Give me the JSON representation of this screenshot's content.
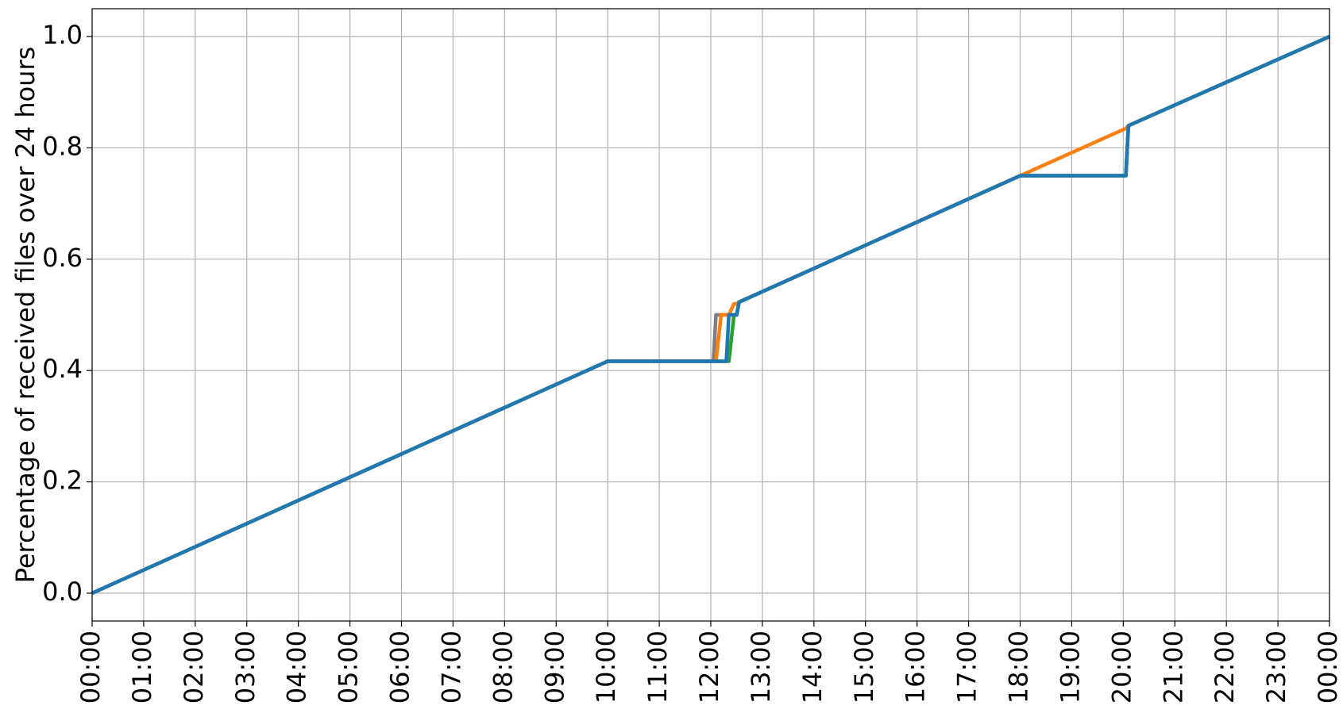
{
  "chart_data": {
    "type": "line",
    "ylabel": "Percentage of received files over 24 hours",
    "x": [
      0,
      10,
      12.05,
      12.1,
      12.2,
      12.25,
      12.3,
      12.35,
      12.45,
      12.5,
      12.55,
      18,
      20.05,
      20.1,
      24
    ],
    "series": [
      {
        "color": "#7f7f7f",
        "values": [
          0,
          0.4167,
          0.4167,
          0.5,
          0.5,
          0.5,
          0.5,
          0.5,
          0.5,
          0.5,
          0.523,
          0.75,
          0.75,
          0.84,
          1.0
        ]
      },
      {
        "color": "#ff7f0e",
        "values": [
          0,
          0.4167,
          0.4167,
          0.4167,
          0.5,
          0.5,
          0.5,
          0.5,
          0.52,
          0.52,
          0.523,
          0.75,
          0.835,
          0.84,
          1.0
        ]
      },
      {
        "color": "#2ca02c",
        "values": [
          0,
          0.4167,
          0.4167,
          0.4167,
          0.4167,
          0.4167,
          0.4167,
          0.4167,
          0.5,
          0.5,
          0.523,
          0.75,
          0.75,
          0.84,
          1.0
        ]
      },
      {
        "color": "#1f77b4",
        "values": [
          0,
          0.4167,
          0.4167,
          0.4167,
          0.4167,
          0.4167,
          0.4167,
          0.5,
          0.5,
          0.5,
          0.523,
          0.75,
          0.75,
          0.84,
          1.0
        ]
      }
    ],
    "xlim": [
      0,
      24
    ],
    "xticks": [
      {
        "value": 0,
        "label": "00:00"
      },
      {
        "value": 1,
        "label": "01:00"
      },
      {
        "value": 2,
        "label": "02:00"
      },
      {
        "value": 3,
        "label": "03:00"
      },
      {
        "value": 4,
        "label": "04:00"
      },
      {
        "value": 5,
        "label": "05:00"
      },
      {
        "value": 6,
        "label": "06:00"
      },
      {
        "value": 7,
        "label": "07:00"
      },
      {
        "value": 8,
        "label": "08:00"
      },
      {
        "value": 9,
        "label": "09:00"
      },
      {
        "value": 10,
        "label": "10:00"
      },
      {
        "value": 11,
        "label": "11:00"
      },
      {
        "value": 12,
        "label": "12:00"
      },
      {
        "value": 13,
        "label": "13:00"
      },
      {
        "value": 14,
        "label": "14:00"
      },
      {
        "value": 15,
        "label": "15:00"
      },
      {
        "value": 16,
        "label": "16:00"
      },
      {
        "value": 17,
        "label": "17:00"
      },
      {
        "value": 18,
        "label": "18:00"
      },
      {
        "value": 19,
        "label": "19:00"
      },
      {
        "value": 20,
        "label": "20:00"
      },
      {
        "value": 21,
        "label": "21:00"
      },
      {
        "value": 22,
        "label": "22:00"
      },
      {
        "value": 23,
        "label": "23:00"
      },
      {
        "value": 24,
        "label": "00:00"
      }
    ],
    "ylim": [
      -0.05,
      1.05
    ],
    "yticks": [
      {
        "value": 0,
        "label": "0.0"
      },
      0.2,
      0.4,
      0.6,
      0.8,
      {
        "value": 1,
        "label": "1.0"
      }
    ],
    "grid": true
  }
}
